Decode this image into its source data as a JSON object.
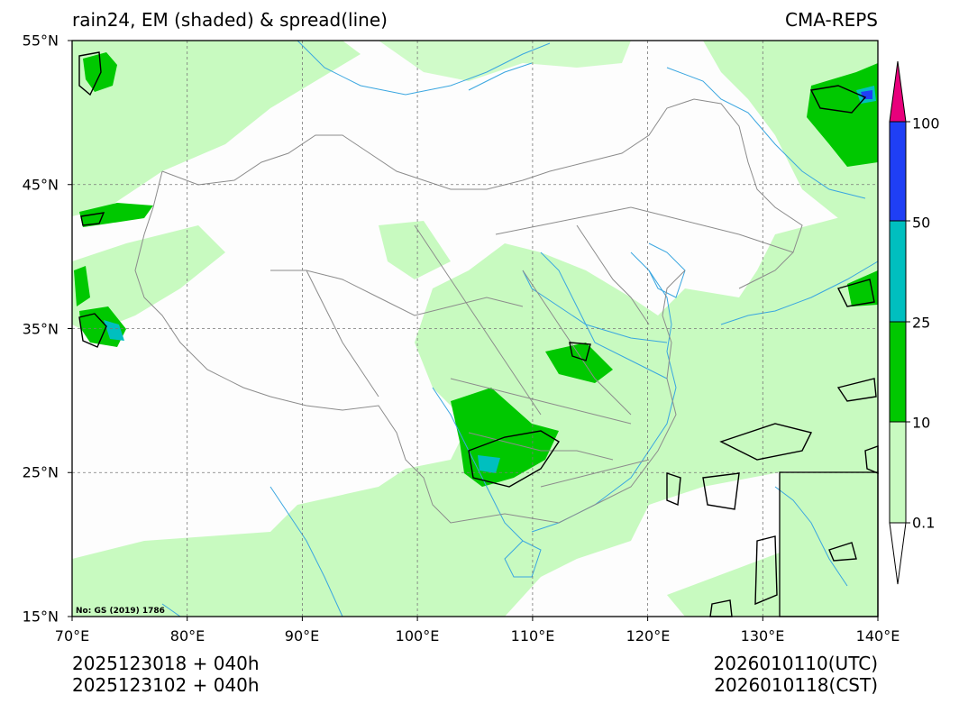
{
  "title": {
    "left": "rain24, EM (shaded) & spread(line)",
    "right": "CMA-REPS"
  },
  "axes": {
    "lat_labels": [
      "55°N",
      "45°N",
      "35°N",
      "25°N",
      "15°N"
    ],
    "lon_labels": [
      "70°E",
      "80°E",
      "90°E",
      "100°E",
      "110°E",
      "120°E",
      "130°E",
      "140°E"
    ],
    "lat_range": [
      15,
      55
    ],
    "lon_range": [
      70,
      140
    ]
  },
  "credit": "No: GS (2019) 1786",
  "footer": {
    "init_utc": "2025123018  +  040h",
    "init_cst": "2025123102  +  040h",
    "valid_utc": "2026010110(UTC)",
    "valid_cst": "2026010118(CST)"
  },
  "colorbar": {
    "labels": [
      "0.1",
      "10",
      "25",
      "50",
      "100"
    ],
    "colors": [
      "#c8fac0",
      "#00c800",
      "#00bfbf",
      "#1f3ff5",
      "#e8007c"
    ]
  },
  "colors": {
    "light_rain": "#c8fac0",
    "moderate_rain": "#00c800",
    "heavy_rain": "#00bfbf",
    "very_heavy_rain": "#1f3ff5",
    "rivers": "#3aa6e0",
    "borders": "#8c8c8c",
    "spread_line": "#000000"
  }
}
